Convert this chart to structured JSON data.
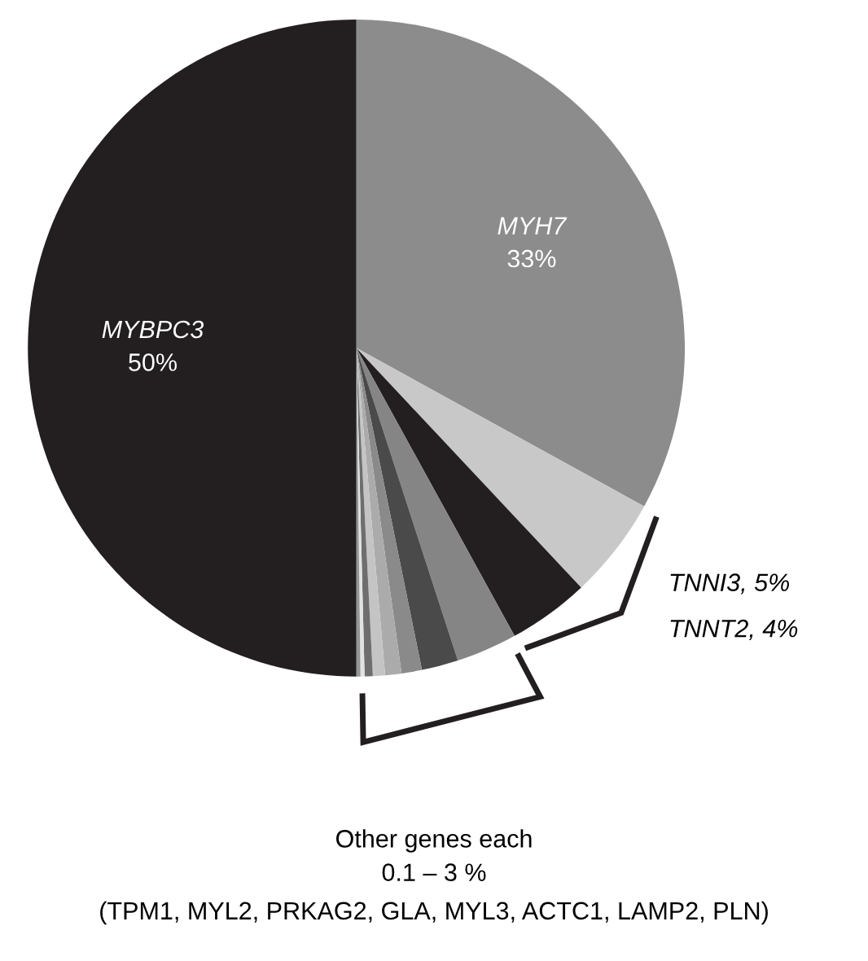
{
  "chart_data": {
    "type": "pie",
    "categories": [
      "MYH7",
      null,
      null,
      null,
      null,
      null,
      null,
      null,
      null,
      null,
      null,
      "MYBPC3"
    ],
    "values": [
      33,
      5,
      4,
      3,
      1.8,
      1,
      0.8,
      0.6,
      0.4,
      0.2,
      0.2,
      50
    ],
    "colors": [
      "#8c8c8c",
      "#c8c8c8",
      "#231f20",
      "#858585",
      "#4a4a4a",
      "#8a8a8a",
      "#ababab",
      "#c4c4c4",
      "#6e6e6e",
      "#e2e2e2",
      "#959595",
      "#231f20"
    ],
    "value_labels": [
      "33%",
      null,
      null,
      null,
      null,
      null,
      null,
      null,
      null,
      null,
      null,
      "50%"
    ],
    "annotations": [
      "TNNI3, 5%",
      "TNNT2, 4%",
      "Other genes each",
      "0.1 – 3 %",
      "(TPM1, MYL2, PRKAG2, GLA, MYL3, ACTC1, LAMP2, PLN)"
    ],
    "legend": false
  }
}
